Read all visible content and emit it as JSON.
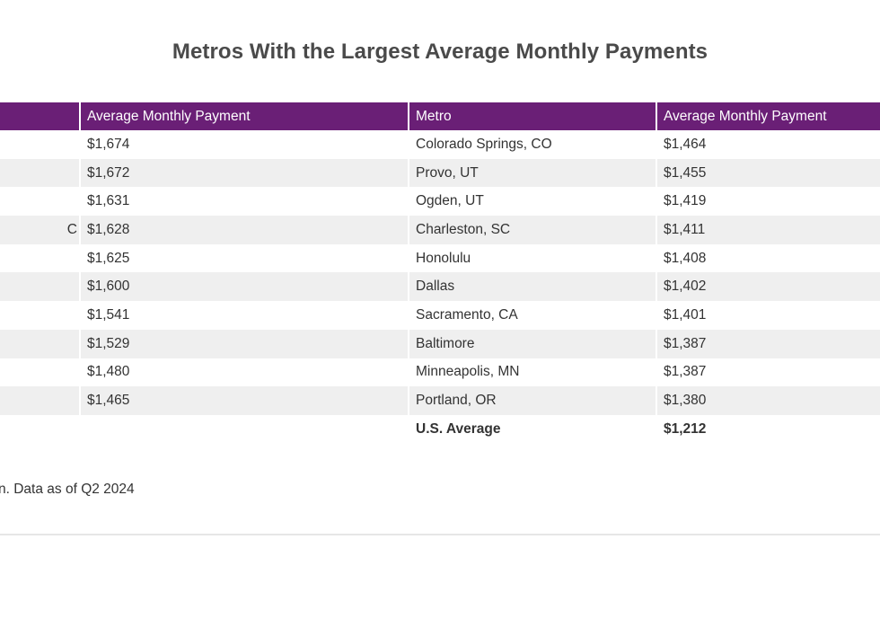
{
  "title": "Metros With the Largest Average Monthly Payments",
  "table": {
    "headers": [
      "",
      "Average Monthly Payment",
      "Metro",
      "Average Monthly Payment"
    ],
    "rows": [
      {
        "left_cut": "",
        "left_payment": "$1,674",
        "metro": "Colorado Springs, CO",
        "payment": "$1,464"
      },
      {
        "left_cut": "",
        "left_payment": "$1,672",
        "metro": "Provo, UT",
        "payment": "$1,455"
      },
      {
        "left_cut": "",
        "left_payment": "$1,631",
        "metro": "Ogden, UT",
        "payment": "$1,419"
      },
      {
        "left_cut": "C",
        "left_payment": "$1,628",
        "metro": "Charleston, SC",
        "payment": "$1,411"
      },
      {
        "left_cut": "",
        "left_payment": "$1,625",
        "metro": "Honolulu",
        "payment": "$1,408"
      },
      {
        "left_cut": "",
        "left_payment": "$1,600",
        "metro": "Dallas",
        "payment": "$1,402"
      },
      {
        "left_cut": "",
        "left_payment": "$1,541",
        "metro": "Sacramento, CA",
        "payment": "$1,401"
      },
      {
        "left_cut": "",
        "left_payment": "$1,529",
        "metro": "Baltimore",
        "payment": "$1,387"
      },
      {
        "left_cut": "",
        "left_payment": "$1,480",
        "metro": "Minneapolis, MN",
        "payment": "$1,387"
      },
      {
        "left_cut": "",
        "left_payment": "$1,465",
        "metro": "Portland, OR",
        "payment": "$1,380"
      }
    ],
    "total": {
      "left_cut": "",
      "left_payment": "",
      "metro": "U.S. Average",
      "payment": "$1,212"
    }
  },
  "footnote": "n. Data as of Q2 2024",
  "colors": {
    "header_bg": "#6a1f76",
    "header_text": "#ffffff",
    "stripe": "#efefef",
    "title": "#4a4a4a"
  }
}
